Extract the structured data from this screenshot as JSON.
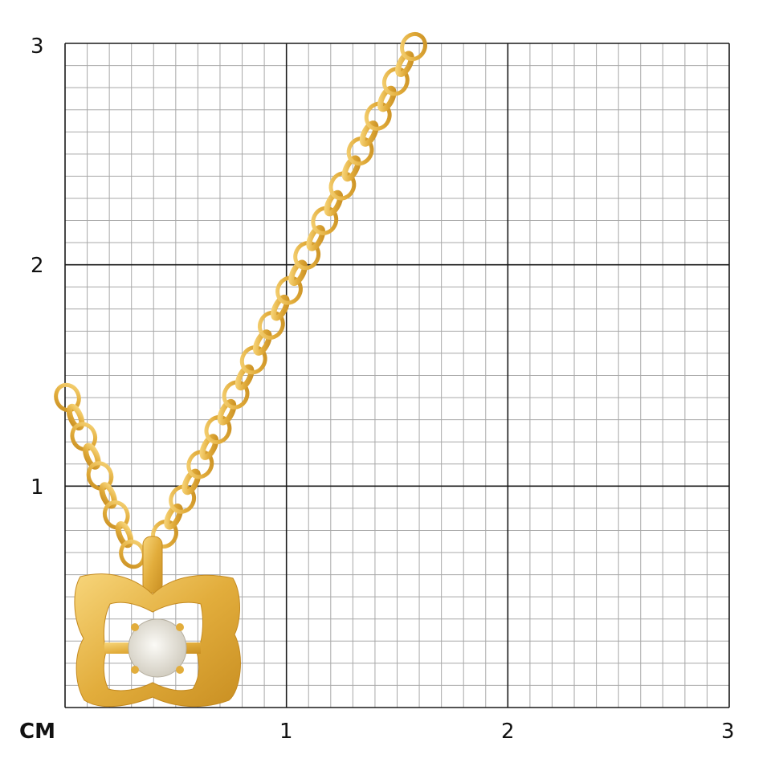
{
  "scale": {
    "unit_label": "СМ",
    "x_ticks": [
      "1",
      "2",
      "3"
    ],
    "y_ticks": [
      "1",
      "2",
      "3"
    ],
    "subdivisions_per_unit": 10,
    "range_cm": [
      0,
      3
    ]
  },
  "product": {
    "type": "pendant with chain",
    "metal_color": "#e8b84a",
    "stone_color": "#e6e3dc"
  },
  "colors": {
    "major_grid": "#1a1a1a",
    "minor_grid": "#a8a8a8"
  }
}
